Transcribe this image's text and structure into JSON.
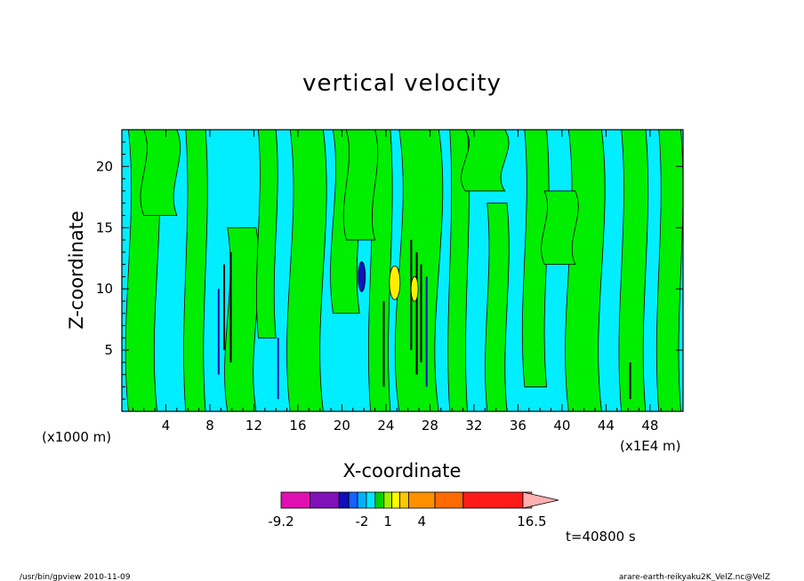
{
  "chart_data": {
    "type": "heatmap",
    "title": "vertical velocity",
    "xlabel": "X-coordinate",
    "ylabel": "Z-coordinate",
    "x_unit": "(x1E4 m)",
    "y_unit": "(x1000 m)",
    "x_range": [
      0,
      51
    ],
    "y_range": [
      0,
      23
    ],
    "x_ticks": [
      4,
      8,
      12,
      16,
      20,
      24,
      28,
      32,
      36,
      40,
      44,
      48
    ],
    "y_ticks": [
      5,
      10,
      15,
      20
    ],
    "colorbar": {
      "labels": [
        {
          "text": "-9.2",
          "value": -9.2
        },
        {
          "text": "-2",
          "value": -2
        },
        {
          "text": "1",
          "value": 1
        },
        {
          "text": "4",
          "value": 4
        },
        {
          "text": "16.5",
          "value": 16.5
        }
      ],
      "bins": [
        {
          "from": -9.2,
          "to": -6.9,
          "color": "#e010b0"
        },
        {
          "from": -6.9,
          "to": -4.5,
          "color": "#8010b8"
        },
        {
          "from": -4.5,
          "to": -3.5,
          "color": "#1010b8"
        },
        {
          "from": -3.5,
          "to": -2.5,
          "color": "#1860ff"
        },
        {
          "from": -2.5,
          "to": -1.5,
          "color": "#00b0ff"
        },
        {
          "from": -1.5,
          "to": -0.5,
          "color": "#00e8ff"
        },
        {
          "from": -0.5,
          "to": 0.5,
          "color": "#00d000"
        },
        {
          "from": 0.5,
          "to": 1.5,
          "color": "#a0f000"
        },
        {
          "from": 1.5,
          "to": 2.5,
          "color": "#ffff00"
        },
        {
          "from": 2.5,
          "to": 3.5,
          "color": "#ffc800"
        },
        {
          "from": 3.5,
          "to": 4.5,
          "color": "#ff9000"
        },
        {
          "from": 4.5,
          "to": 7.0,
          "color": "#ff6a00"
        },
        {
          "from": 7.0,
          "to": 10.0,
          "color": "#ff1a1a"
        },
        {
          "from": 10.0,
          "to": 16.5,
          "color": "#ff8080"
        }
      ],
      "overflow_color": "#ffb0b0"
    },
    "time_label": "t=40800 s"
  },
  "footer": {
    "left": "/usr/bin/gpview   2010-11-09",
    "right": "arare-earth-reikyaku2K_VelZ.nc@VelZ"
  },
  "colors": {
    "background_cyan": "#00eeff",
    "field_green": "#00ee00",
    "updraft_yellow": "#ffee00",
    "downdraft_blue": "#1010c0",
    "contour": "#000000"
  }
}
